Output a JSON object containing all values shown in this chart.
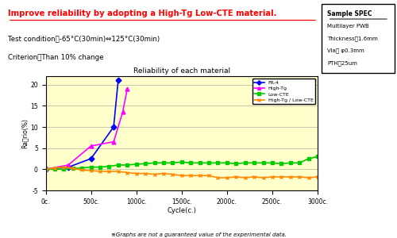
{
  "title_text": "Improve reliability by adopting a High-Tg Low-CTE material.",
  "test_condition": "Test condition：-65°C(30min)⇔125°C(30min)",
  "criterion": "Criterion：Than 10% change",
  "spec_title": "Sample SPEC",
  "spec_lines": [
    "Multilayer PWB",
    "Thickness：1.6mm",
    "Via： φ0.3mm",
    "PTH：25um"
  ],
  "footnote": "※Graphs are not a guaranteed value of the experimental data.",
  "chart_title": "Reliability of each material",
  "xlabel": "Cycle(c.)",
  "ylabel": "Raヺrio(%)",
  "xlim": [
    0,
    3000
  ],
  "ylim": [
    -5,
    22
  ],
  "yticks": [
    -5,
    0,
    5,
    10,
    15,
    20
  ],
  "xtick_labels": [
    "0c.",
    "500c.",
    "1000c.",
    "1500c.",
    "2000c.",
    "2500c.",
    "3000c."
  ],
  "xtick_vals": [
    0,
    500,
    1000,
    1500,
    2000,
    2500,
    3000
  ],
  "bg_color": "#ffffcc",
  "fr4": {
    "label": "FR-4",
    "color": "#0000ff",
    "marker": "D",
    "x": [
      0,
      250,
      500,
      750,
      800
    ],
    "y": [
      0,
      0.5,
      2.5,
      10,
      21
    ]
  },
  "high_tg": {
    "label": "High-Tg",
    "color": "#ff00ff",
    "marker": "^",
    "x": [
      0,
      250,
      500,
      750,
      850,
      900
    ],
    "y": [
      0,
      1,
      5.5,
      6.5,
      13.5,
      19
    ]
  },
  "low_cte": {
    "label": "Low-CTE",
    "color": "#00cc00",
    "marker": "s",
    "x": [
      0,
      100,
      200,
      300,
      400,
      500,
      600,
      700,
      800,
      900,
      1000,
      1100,
      1200,
      1300,
      1400,
      1500,
      1600,
      1700,
      1800,
      1900,
      2000,
      2100,
      2200,
      2300,
      2400,
      2500,
      2600,
      2700,
      2800,
      2900,
      3000
    ],
    "y": [
      0,
      0,
      0,
      0.2,
      0.3,
      0.5,
      0.5,
      0.7,
      1,
      1,
      1.2,
      1.3,
      1.5,
      1.5,
      1.5,
      1.7,
      1.5,
      1.5,
      1.5,
      1.5,
      1.5,
      1.3,
      1.5,
      1.5,
      1.5,
      1.5,
      1.3,
      1.5,
      1.5,
      2.5,
      3
    ]
  },
  "high_tg_low_cte": {
    "label": "High-Tg / Low-CTE",
    "color": "#ff8800",
    "marker": "x",
    "x": [
      0,
      100,
      200,
      300,
      400,
      500,
      600,
      700,
      800,
      900,
      1000,
      1100,
      1200,
      1300,
      1400,
      1500,
      1600,
      1700,
      1800,
      1900,
      2000,
      2100,
      2200,
      2300,
      2400,
      2500,
      2600,
      2700,
      2800,
      2900,
      3000
    ],
    "y": [
      0,
      0.3,
      0.5,
      0.2,
      -0.2,
      -0.3,
      -0.5,
      -0.5,
      -0.5,
      -0.8,
      -1,
      -1,
      -1.2,
      -1,
      -1.2,
      -1.5,
      -1.5,
      -1.5,
      -1.5,
      -2,
      -2,
      -1.8,
      -2,
      -1.8,
      -2,
      -1.8,
      -1.8,
      -1.8,
      -1.8,
      -2,
      -1.8
    ]
  }
}
